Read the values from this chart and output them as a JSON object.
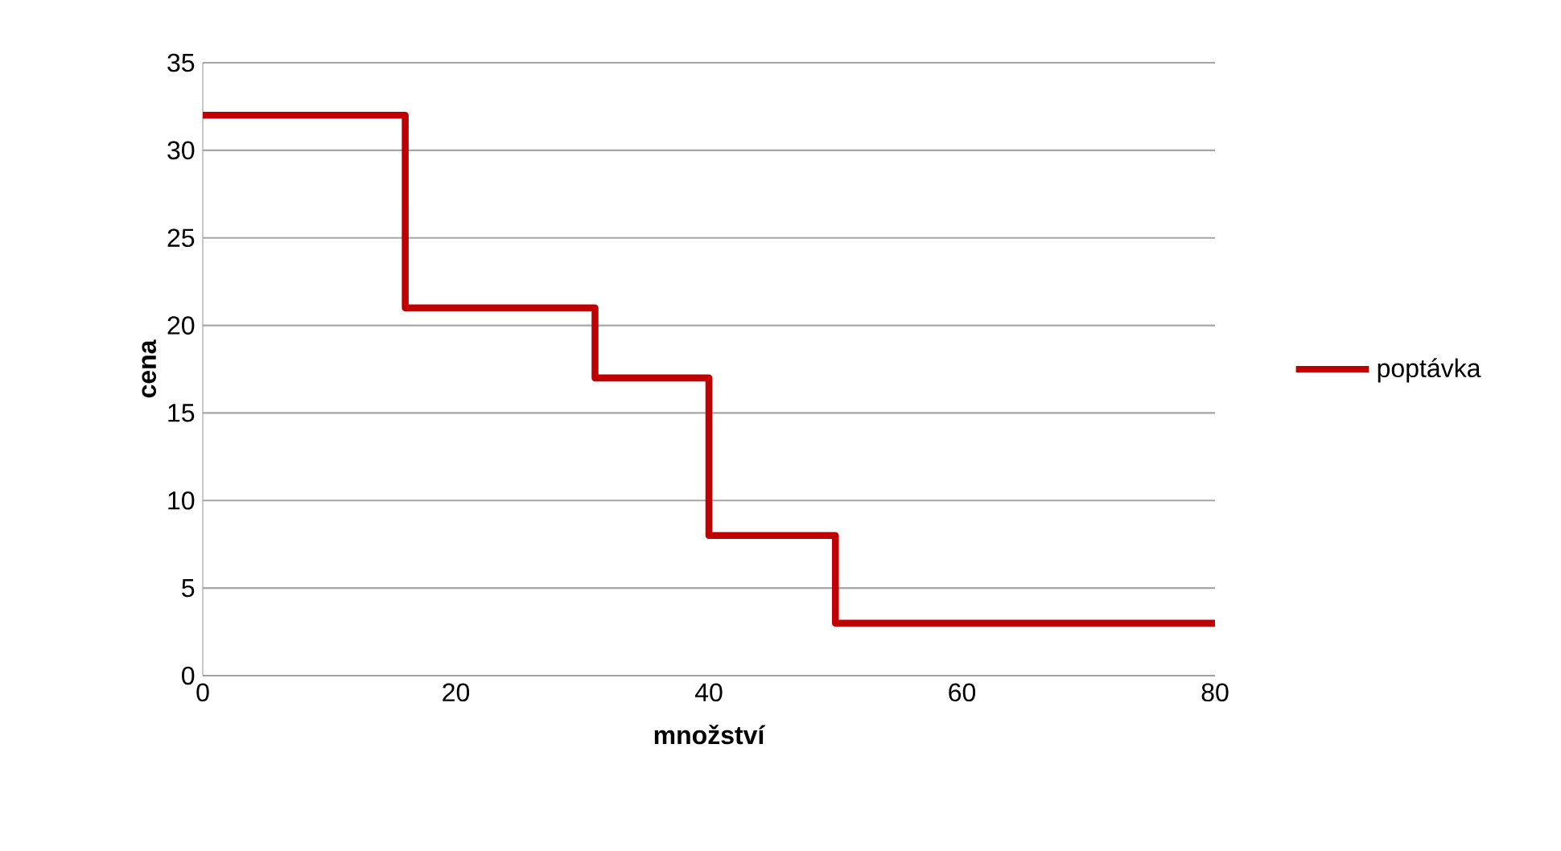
{
  "chart_data": {
    "type": "step",
    "xlabel": "množství",
    "ylabel": "cena",
    "x": [
      0,
      16,
      31,
      40,
      50,
      80
    ],
    "series": [
      {
        "name": "poptávka",
        "color": "#c00000",
        "values": [
          32,
          21,
          17,
          8,
          3,
          3
        ]
      }
    ],
    "xlim": [
      0,
      80
    ],
    "xticks": [
      0,
      20,
      40,
      60,
      80
    ],
    "ylim": [
      0,
      35
    ],
    "yticks": [
      0,
      5,
      10,
      15,
      20,
      25,
      30,
      35
    ],
    "grid": "y",
    "legend": "right",
    "marker": "none",
    "line_style": "solid"
  }
}
